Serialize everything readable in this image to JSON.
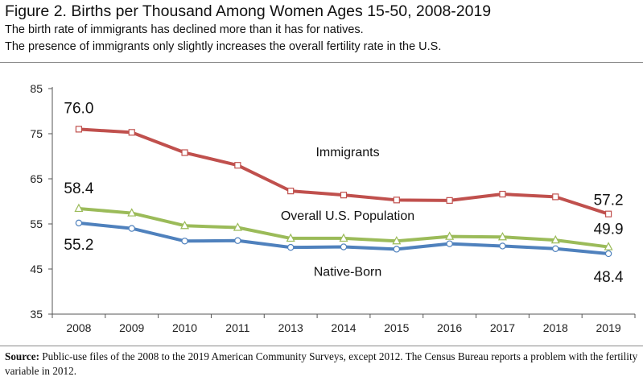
{
  "title": "Figure 2. Births per Thousand Among Women Ages 15-50, 2008-2019",
  "subtitles": [
    "The birth rate of immigrants has declined more than it has for natives.",
    "The presence of immigrants only slightly increases the overall fertility rate in the U.S."
  ],
  "source": {
    "label": "Source:",
    "text": "Public-use files of the 2008 to the 2019 American Community Surveys, except 2012. The Census Bureau reports a problem with the fertility variable in 2012."
  },
  "chart_data": {
    "type": "line",
    "title": "Figure 2. Births per Thousand Among Women Ages 15-50, 2008-2019",
    "categories": [
      "2008",
      "2009",
      "2010",
      "2011",
      "2013",
      "2014",
      "2015",
      "2016",
      "2017",
      "2018",
      "2019"
    ],
    "ylim": [
      35,
      85
    ],
    "yticks": [
      35,
      45,
      55,
      65,
      75,
      85
    ],
    "grid": false,
    "series": [
      {
        "name": "Immigrants",
        "color": "#c0504d",
        "marker": "square",
        "values": [
          76.0,
          75.3,
          70.8,
          68.0,
          62.3,
          61.4,
          60.3,
          60.2,
          61.6,
          61.0,
          57.2
        ],
        "label_first": "76.0",
        "label_last": "57.2"
      },
      {
        "name": "Overall U.S. Population",
        "color": "#9bbb59",
        "marker": "triangle",
        "values": [
          58.4,
          57.4,
          54.6,
          54.2,
          51.8,
          51.8,
          51.2,
          52.2,
          52.1,
          51.4,
          49.9
        ],
        "label_first": "58.4",
        "label_last": "49.9"
      },
      {
        "name": "Native-Born",
        "color": "#4f81bd",
        "marker": "circle",
        "values": [
          55.2,
          54.0,
          51.2,
          51.3,
          49.8,
          49.9,
          49.4,
          50.6,
          50.1,
          49.5,
          48.4
        ],
        "label_first": "55.2",
        "label_last": "48.4"
      }
    ]
  }
}
